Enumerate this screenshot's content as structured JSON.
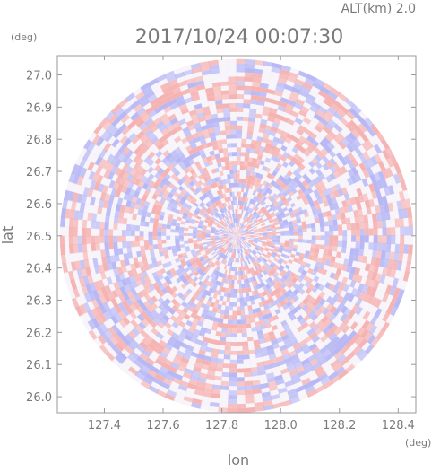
{
  "chart_data": {
    "type": "heatmap",
    "header": {
      "altitude": "ALT(km) 2.0",
      "timestamp": "2017/10/24 00:07:30"
    },
    "xlabel": "lon",
    "ylabel": "lat",
    "xunit": "(deg)",
    "yunit": "(deg)",
    "xlim": [
      127.24,
      128.46
    ],
    "ylim": [
      25.95,
      27.06
    ],
    "xticks": [
      "127.4",
      "127.6",
      "127.8",
      "128.0",
      "128.2",
      "128.4"
    ],
    "yticks": [
      "26.0",
      "26.1",
      "26.2",
      "26.3",
      "26.4",
      "26.5",
      "26.6",
      "26.7",
      "26.8",
      "26.9",
      "27.0"
    ],
    "radar_center": {
      "lon": 127.85,
      "lat": 26.5
    },
    "radar_range_deg_lat": 0.55,
    "colors": {
      "positive": "#f5b3b3",
      "negative": "#b8b8f5",
      "near_zero": "#f3eef7",
      "frame": "#9a9a9a"
    }
  }
}
